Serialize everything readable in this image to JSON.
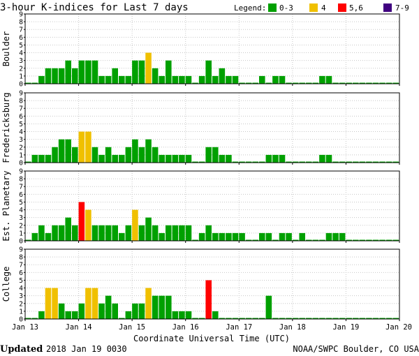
{
  "title": "3-hour K-indices for Last 7 days",
  "legend": {
    "label": "Legend:",
    "items": [
      {
        "label": "0-3",
        "color": "#00a000"
      },
      {
        "label": "4",
        "color": "#f0c000"
      },
      {
        "label": "5,6",
        "color": "#ff0000"
      },
      {
        "label": "7-9",
        "color": "#400080"
      }
    ]
  },
  "x_axis": {
    "label": "Coordinate Universal Time (UTC)",
    "ticks": [
      "Jan 13",
      "Jan 14",
      "Jan 15",
      "Jan 16",
      "Jan 17",
      "Jan 18",
      "Jan 19",
      "Jan 20"
    ]
  },
  "y_ticks": [
    "0",
    "1",
    "2",
    "3",
    "4",
    "5",
    "6",
    "7",
    "8",
    "9"
  ],
  "footer": {
    "updated_label": "Updated",
    "updated_value": "2018 Jan 19 0030",
    "credit": "NOAA/SWPC Boulder, CO USA"
  },
  "chart_data": [
    {
      "type": "bar",
      "title": "Boulder",
      "ylim": [
        0,
        9
      ],
      "x_range": [
        "Jan 13",
        "Jan 20"
      ],
      "values": [
        0,
        0,
        1,
        2,
        2,
        2,
        3,
        2,
        3,
        3,
        3,
        1,
        1,
        2,
        1,
        1,
        3,
        3,
        4,
        2,
        1,
        3,
        1,
        1,
        1,
        0,
        1,
        3,
        1,
        2,
        1,
        1,
        0,
        0,
        0,
        1,
        0,
        1,
        1,
        0,
        0,
        0,
        0,
        0,
        1,
        1,
        0,
        0,
        0,
        0,
        0,
        0,
        0,
        0,
        0,
        0
      ]
    },
    {
      "type": "bar",
      "title": "Fredericksburg",
      "ylim": [
        0,
        9
      ],
      "x_range": [
        "Jan 13",
        "Jan 20"
      ],
      "values": [
        0,
        1,
        1,
        1,
        2,
        3,
        3,
        2,
        4,
        4,
        2,
        1,
        2,
        1,
        1,
        2,
        3,
        2,
        3,
        2,
        1,
        1,
        1,
        1,
        1,
        0,
        0,
        2,
        2,
        1,
        1,
        0,
        0,
        0,
        0,
        0,
        1,
        1,
        1,
        0,
        0,
        0,
        0,
        0,
        1,
        1,
        0,
        0,
        0,
        0,
        0,
        0,
        0,
        0,
        0,
        0
      ]
    },
    {
      "type": "bar",
      "title": "Est. Planetary",
      "ylim": [
        0,
        9
      ],
      "x_range": [
        "Jan 13",
        "Jan 20"
      ],
      "values": [
        0,
        1,
        2,
        1,
        2,
        2,
        3,
        2,
        5,
        4,
        2,
        2,
        2,
        2,
        1,
        2,
        4,
        2,
        3,
        2,
        1,
        2,
        2,
        2,
        2,
        0,
        1,
        2,
        1,
        1,
        1,
        1,
        1,
        0,
        0,
        1,
        1,
        0,
        1,
        1,
        0,
        1,
        0,
        0,
        0,
        1,
        1,
        1,
        0,
        0,
        0,
        0,
        0,
        0,
        0,
        0
      ]
    },
    {
      "type": "bar",
      "title": "College",
      "ylim": [
        0,
        9
      ],
      "x_range": [
        "Jan 13",
        "Jan 20"
      ],
      "values": [
        0,
        0,
        1,
        4,
        4,
        2,
        1,
        1,
        2,
        4,
        4,
        2,
        3,
        2,
        0,
        1,
        2,
        2,
        4,
        3,
        3,
        3,
        1,
        1,
        1,
        0,
        0,
        5,
        1,
        0,
        0,
        0,
        0,
        0,
        0,
        0,
        3,
        0,
        0,
        0,
        0,
        0,
        0,
        0,
        0,
        0,
        0,
        0,
        0,
        0,
        0,
        0,
        0,
        0,
        0,
        0
      ]
    }
  ]
}
